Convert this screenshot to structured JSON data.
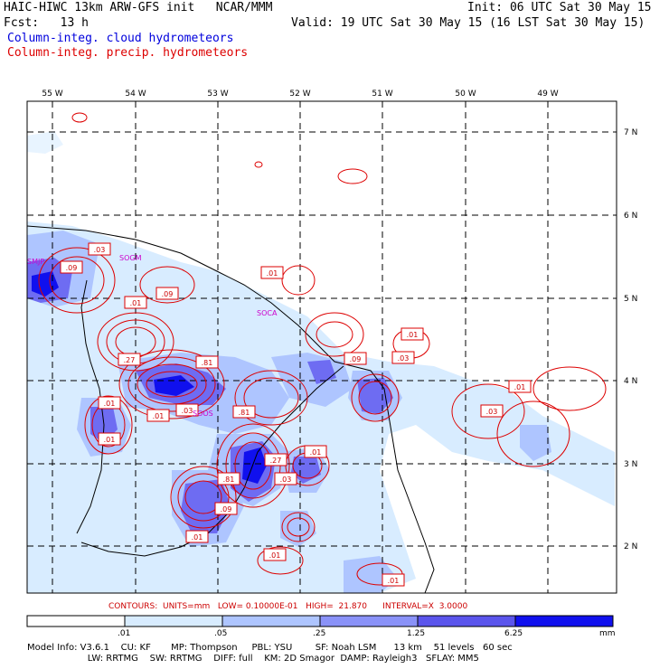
{
  "header": {
    "line1_left": "HAIC-HIWC 13km ARW-GFS init   NCAR/MMM",
    "line1_right": "Init: 06 UTC Sat 30 May 15",
    "line2_left": "Fcst:   13 h",
    "line2_right": "Valid: 19 UTC Sat 30 May 15 (16 LST Sat 30 May 15)",
    "legend_cloud": "Column-integ. cloud hydrometeors",
    "legend_precip": "Column-integ. precip. hydrometeors"
  },
  "map": {
    "lon_labels": [
      "55 W",
      "54 W",
      "53 W",
      "52 W",
      "51 W",
      "50 W",
      "49 W"
    ],
    "lat_labels": [
      "7 N",
      "6 N",
      "5 N",
      "4 N",
      "3 N",
      "2 N"
    ],
    "sites": [
      "SMJP",
      "SOGM",
      "SOCA",
      "SOOS"
    ],
    "contour_labels": [
      ".03",
      ".09",
      ".01",
      ".09",
      ".01",
      ".01",
      ".27",
      ".81",
      ".09",
      ".03",
      ".01",
      ".01",
      ".03",
      ".01",
      ".81",
      ".01",
      ".27",
      ".01",
      ".03",
      ".81",
      ".09",
      ".01",
      ".01",
      ".01",
      ".03"
    ],
    "colors": {
      "precip_contour": "#dd0000",
      "cloud_light": "#d8ecff",
      "cloud_mid": "#9db8ff",
      "cloud_dark": "#6e6cf2",
      "cloud_max": "#1010ee",
      "coast": "#000000",
      "grid": "#000000"
    }
  },
  "contours_text": "CONTOURS:  UNITS=mm   LOW= 0.10000E-01   HIGH=  21.870      INTERVAL=X  3.0000",
  "colorbar": {
    "ticks": [
      ".01",
      ".05",
      ".25",
      "1.25",
      "6.25"
    ],
    "units": "mm",
    "colors": [
      "#ffffff",
      "#d8ecff",
      "#aec5ff",
      "#8a92f8",
      "#5b55ec",
      "#1010ee"
    ]
  },
  "model_info": {
    "line1": "Model Info: V3.6.1    CU: KF       MP: Thompson     PBL: YSU        SF: Noah LSM      13 km    51 levels   60 sec",
    "line2": "                     LW: RRTMG    SW: RRTMG    DIFF: full    KM: 2D Smagor  DAMP: Rayleigh3   SFLAY: MM5"
  }
}
